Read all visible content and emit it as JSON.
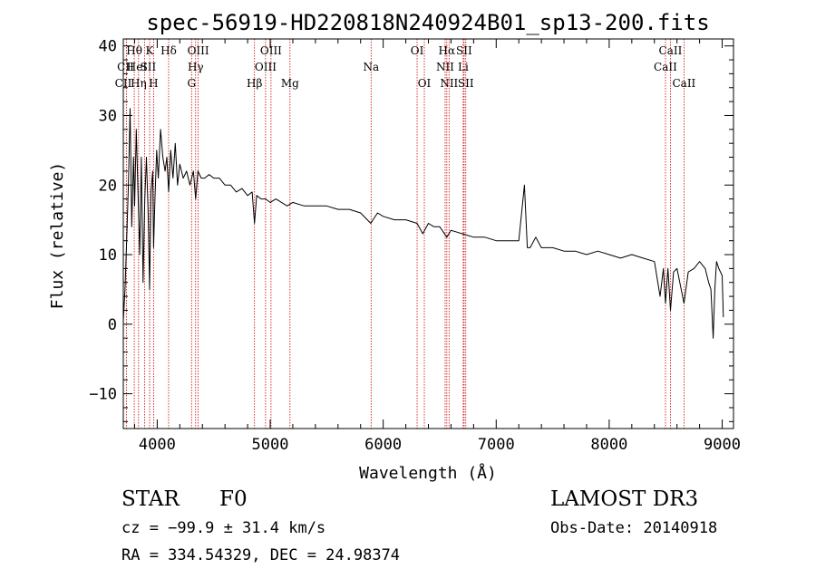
{
  "chart_data": {
    "type": "line",
    "title": "spec-56919-HD220818N240924B01_sp13-200.fits",
    "xlabel": "Wavelength (Å)",
    "ylabel": "Flux (relative)",
    "xlim": [
      3700,
      9100
    ],
    "ylim": [
      -15,
      41
    ],
    "xticks": [
      4000,
      5000,
      6000,
      7000,
      8000,
      9000
    ],
    "yticks": [
      -10,
      0,
      10,
      20,
      30,
      40
    ],
    "grid": false,
    "series": [
      {
        "name": "spectrum",
        "x": [
          3700,
          3715,
          3730,
          3745,
          3760,
          3775,
          3790,
          3800,
          3815,
          3830,
          3845,
          3860,
          3875,
          3890,
          3905,
          3920,
          3933,
          3945,
          3960,
          3968,
          3980,
          3995,
          4010,
          4030,
          4050,
          4070,
          4085,
          4101,
          4120,
          4140,
          4160,
          4180,
          4200,
          4230,
          4260,
          4290,
          4320,
          4340,
          4360,
          4390,
          4420,
          4460,
          4500,
          4550,
          4600,
          4650,
          4700,
          4750,
          4800,
          4840,
          4861,
          4880,
          4920,
          4960,
          5000,
          5050,
          5100,
          5150,
          5200,
          5300,
          5400,
          5500,
          5600,
          5700,
          5800,
          5890,
          5950,
          6000,
          6100,
          6200,
          6300,
          6350,
          6400,
          6450,
          6500,
          6563,
          6600,
          6700,
          6800,
          6900,
          7000,
          7100,
          7200,
          7250,
          7275,
          7300,
          7350,
          7400,
          7500,
          7600,
          7700,
          7800,
          7900,
          8000,
          8100,
          8200,
          8300,
          8400,
          8450,
          8480,
          8498,
          8520,
          8542,
          8570,
          8600,
          8662,
          8700,
          8750,
          8800,
          8850,
          8880,
          8900,
          8920,
          8935,
          8950,
          8970,
          9000,
          9010
        ],
        "y": [
          0.5,
          5,
          12,
          20,
          31,
          14,
          24,
          17,
          28,
          19,
          10,
          24,
          6,
          18,
          24,
          16,
          5,
          19,
          22,
          11,
          18,
          25,
          21,
          28,
          24,
          22,
          24,
          19,
          25,
          21,
          26,
          20,
          23,
          21,
          22,
          20,
          22,
          18,
          22,
          21,
          21,
          21.5,
          21,
          21,
          20,
          20,
          19,
          19.5,
          18.5,
          19,
          14.5,
          18.5,
          18,
          18,
          17.5,
          18,
          17.5,
          17,
          17.5,
          17,
          17,
          17,
          16.5,
          16.5,
          16,
          14.5,
          16,
          15.5,
          15,
          15,
          14.5,
          13,
          14.5,
          14,
          14,
          12.5,
          13.5,
          13,
          12.5,
          12.5,
          12,
          12,
          12,
          20,
          11,
          11,
          12.5,
          11,
          11,
          10.5,
          10.5,
          10,
          10.5,
          10,
          9.5,
          10,
          9.5,
          9,
          4,
          8,
          3,
          8,
          2,
          7.5,
          8,
          3,
          7.5,
          8,
          9,
          8,
          6,
          5,
          -2,
          5,
          9,
          8,
          7,
          1
        ]
      }
    ],
    "annotations": [
      {
        "label": "CII",
        "wavelength": 3700,
        "tier": 3
      },
      {
        "label": "CII",
        "wavelength": 3720,
        "tier": 2
      },
      {
        "label": "Hθ",
        "wavelength": 3797,
        "tier": 1
      },
      {
        "label": "K",
        "wavelength": 3933,
        "tier": 1
      },
      {
        "label": "HeI",
        "wavelength": 3820,
        "tier": 2
      },
      {
        "label": "SII",
        "wavelength": 3920,
        "tier": 2
      },
      {
        "label": "Hη",
        "wavelength": 3835,
        "tier": 3
      },
      {
        "label": "H",
        "wavelength": 3968,
        "tier": 3
      },
      {
        "label": "Hδ",
        "wavelength": 4101,
        "tier": 1
      },
      {
        "label": "OIII",
        "wavelength": 4363,
        "tier": 1
      },
      {
        "label": "Hγ",
        "wavelength": 4340,
        "tier": 2
      },
      {
        "label": "G",
        "wavelength": 4304,
        "tier": 3
      },
      {
        "label": "Hβ",
        "wavelength": 4861,
        "tier": 3
      },
      {
        "label": "OIII",
        "wavelength": 5007,
        "tier": 1
      },
      {
        "label": "OIII",
        "wavelength": 4959,
        "tier": 2
      },
      {
        "label": "Mg",
        "wavelength": 5175,
        "tier": 3
      },
      {
        "label": "Na",
        "wavelength": 5893,
        "tier": 2
      },
      {
        "label": "OI",
        "wavelength": 6300,
        "tier": 1
      },
      {
        "label": "OI",
        "wavelength": 6364,
        "tier": 3
      },
      {
        "label": "Hα",
        "wavelength": 6563,
        "tier": 1
      },
      {
        "label": "SII",
        "wavelength": 6716,
        "tier": 1
      },
      {
        "label": "NII",
        "wavelength": 6548,
        "tier": 2
      },
      {
        "label": "Li",
        "wavelength": 6708,
        "tier": 2
      },
      {
        "label": "NII",
        "wavelength": 6583,
        "tier": 3
      },
      {
        "label": "SII",
        "wavelength": 6731,
        "tier": 3
      },
      {
        "label": "CaII",
        "wavelength": 8542,
        "tier": 1
      },
      {
        "label": "CaII",
        "wavelength": 8498,
        "tier": 2
      },
      {
        "label": "CaII",
        "wavelength": 8662,
        "tier": 3
      }
    ],
    "line_markers": [
      3727,
      3797,
      3835,
      3889,
      3933,
      3968,
      4101,
      4304,
      4340,
      4363,
      4861,
      4959,
      5007,
      5175,
      5893,
      6300,
      6364,
      6548,
      6563,
      6583,
      6708,
      6716,
      6731,
      8498,
      8542,
      8662
    ]
  },
  "info": {
    "object_class": "STAR",
    "subclass": "F0",
    "survey": "LAMOST DR3",
    "redshift_text": "cz = −99.9 ± 31.4 km/s",
    "obs_date_text": "Obs-Date: 20140918",
    "coords_text": "RA = 334.54329, DEC =  24.98374"
  },
  "colors": {
    "spectrum": "#000000",
    "marker": "#cc0000",
    "axis": "#000000"
  }
}
